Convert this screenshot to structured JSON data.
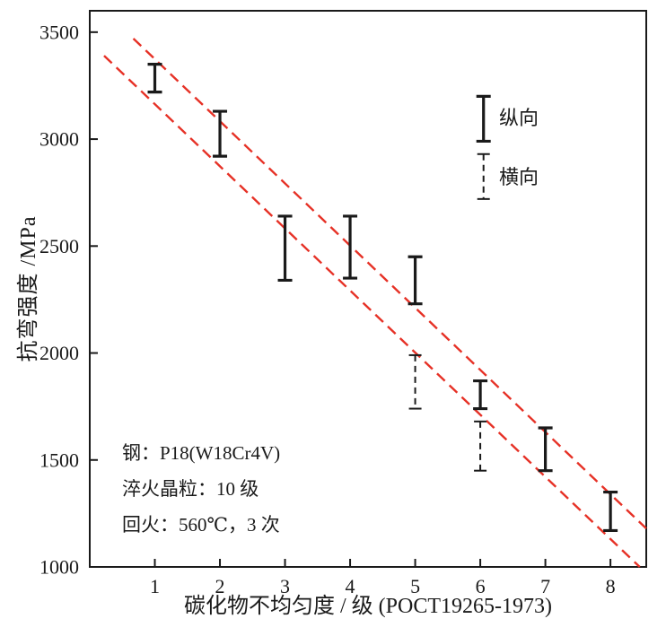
{
  "figure": {
    "background": "#ffffff",
    "axis_color": "#1a1a1a",
    "band_color": "#e63126"
  },
  "chart_data": {
    "type": "scatter",
    "title": "",
    "xlabel": "碳化物不均匀度 / 级 (POCT19265-1973)",
    "ylabel": "抗弯强度 /MPa",
    "xlim": [
      0,
      8.55
    ],
    "ylim": [
      1000,
      3600
    ],
    "x_ticks": [
      1,
      2,
      3,
      4,
      5,
      6,
      7,
      8
    ],
    "y_ticks": [
      1000,
      1500,
      2000,
      2500,
      3000,
      3500
    ],
    "grid": false,
    "legend_position": "upper-right-inside",
    "series": [
      {
        "name": "纵向",
        "style": "solid",
        "points": [
          {
            "x": 1,
            "low": 3220,
            "high": 3350
          },
          {
            "x": 2,
            "low": 2920,
            "high": 3130
          },
          {
            "x": 3,
            "low": 2340,
            "high": 2640
          },
          {
            "x": 4,
            "low": 2350,
            "high": 2640
          },
          {
            "x": 5,
            "low": 2230,
            "high": 2450
          },
          {
            "x": 6,
            "low": 1740,
            "high": 1870
          },
          {
            "x": 7,
            "low": 1450,
            "high": 1650
          },
          {
            "x": 8,
            "low": 1170,
            "high": 1350
          }
        ]
      },
      {
        "name": "横向",
        "style": "dashed",
        "points": [
          {
            "x": 5,
            "low": 1740,
            "high": 1990
          },
          {
            "x": 6,
            "low": 1450,
            "high": 1680
          }
        ]
      }
    ],
    "band_lines": [
      {
        "x1": 0.67,
        "y1": 3470,
        "x2": 8.55,
        "y2": 1180
      },
      {
        "x1": 0.22,
        "y1": 3390,
        "x2": 8.45,
        "y2": 1000
      }
    ],
    "legend": {
      "items": [
        {
          "label": "纵向",
          "style": "solid",
          "x": 6.05,
          "top": 3200,
          "bottom": 2990
        },
        {
          "label": "横向",
          "style": "dashed",
          "x": 6.05,
          "top": 2930,
          "bottom": 2720
        }
      ]
    },
    "annotation": {
      "lines": [
        "钢：P18(W18Cr4V)",
        "淬火晶粒：10 级",
        "回火：560℃，3 次"
      ]
    }
  }
}
